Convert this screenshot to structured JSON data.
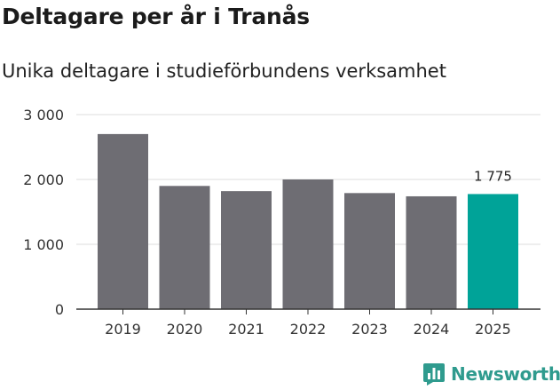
{
  "header": {
    "title": "Deltagare per år i Tranås",
    "subtitle": "Unika deltagare i studieförbundens verksamhet"
  },
  "brand": {
    "name": "Newsworthy",
    "icon": "newsworthy-logo-icon"
  },
  "colors": {
    "bar": "#6e6d73",
    "highlight": "#00a398",
    "grid": "#dcdcdc",
    "axis": "#333333",
    "brand": "#2f9b8e"
  },
  "chart_data": {
    "type": "bar",
    "title": "Deltagare per år i Tranås",
    "subtitle": "Unika deltagare i studieförbundens verksamhet",
    "xlabel": "",
    "ylabel": "",
    "categories": [
      "2019",
      "2020",
      "2021",
      "2022",
      "2023",
      "2024",
      "2025"
    ],
    "values": [
      2700,
      1900,
      1820,
      2000,
      1790,
      1740,
      1775
    ],
    "highlight_index": 6,
    "data_labels": [
      {
        "index": 6,
        "text": "1 775"
      }
    ],
    "ylim": [
      0,
      3000
    ],
    "yticks": [
      0,
      1000,
      2000,
      3000
    ],
    "ytick_labels": [
      "0",
      "1 000",
      "2 000",
      "3 000"
    ],
    "grid": true,
    "legend": "none"
  }
}
